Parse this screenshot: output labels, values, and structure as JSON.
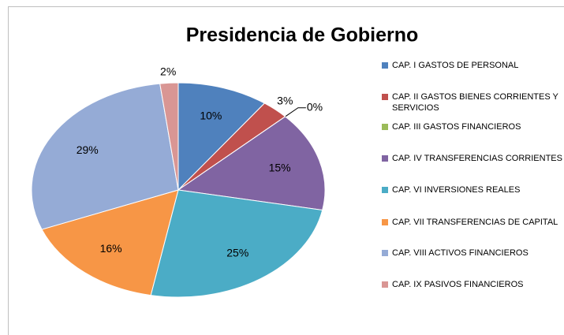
{
  "chart_data": {
    "type": "pie",
    "title": "Presidencia de Gobierno",
    "categories": [
      "CAP. I GASTOS DE PERSONAL",
      "CAP. II GASTOS BIENES CORRIENTES Y SERVICIOS",
      "CAP. III GASTOS FINANCIEROS",
      "CAP. IV TRANSFERENCIAS CORRIENTES",
      "CAP. VI INVERSIONES REALES",
      "CAP. VII TRANSFERENCIAS DE CAPITAL",
      "CAP. VIII ACTIVOS FINANCIEROS",
      "CAP. IX PASIVOS FINANCIEROS"
    ],
    "values": [
      10,
      3,
      0,
      15,
      25,
      16,
      29,
      2
    ],
    "value_labels": [
      "10%",
      "3%",
      "0%",
      "15%",
      "25%",
      "16%",
      "29%",
      "2%"
    ],
    "colors": [
      "#4f81bd",
      "#c0504d",
      "#9bbb59",
      "#8064a2",
      "#4bacc6",
      "#f79646",
      "#95abd6",
      "#d99694"
    ],
    "legend": "right"
  }
}
